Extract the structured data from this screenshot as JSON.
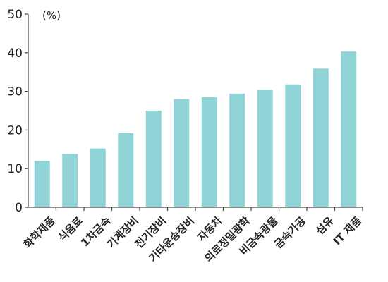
{
  "chart_data": {
    "type": "bar",
    "unit_label": "(%)",
    "categories": [
      "화학제품",
      "식음료",
      "1차금속",
      "기계장비",
      "전기장비",
      "기타운송장비",
      "자동차",
      "의료정밀광학",
      "비금속광물",
      "금속가공",
      "섬유",
      "IT 제품"
    ],
    "values": [
      12,
      13.8,
      15.2,
      19.2,
      25,
      28,
      28.5,
      29.4,
      30.4,
      31.8,
      35.9,
      40.3
    ],
    "ylim": [
      0,
      50
    ],
    "yticks": [
      0,
      10,
      20,
      30,
      40,
      50
    ],
    "grid": false,
    "legend": "none",
    "colors": {
      "bar": "#90d4d8",
      "axis": "#444444",
      "text": "#222222"
    }
  }
}
